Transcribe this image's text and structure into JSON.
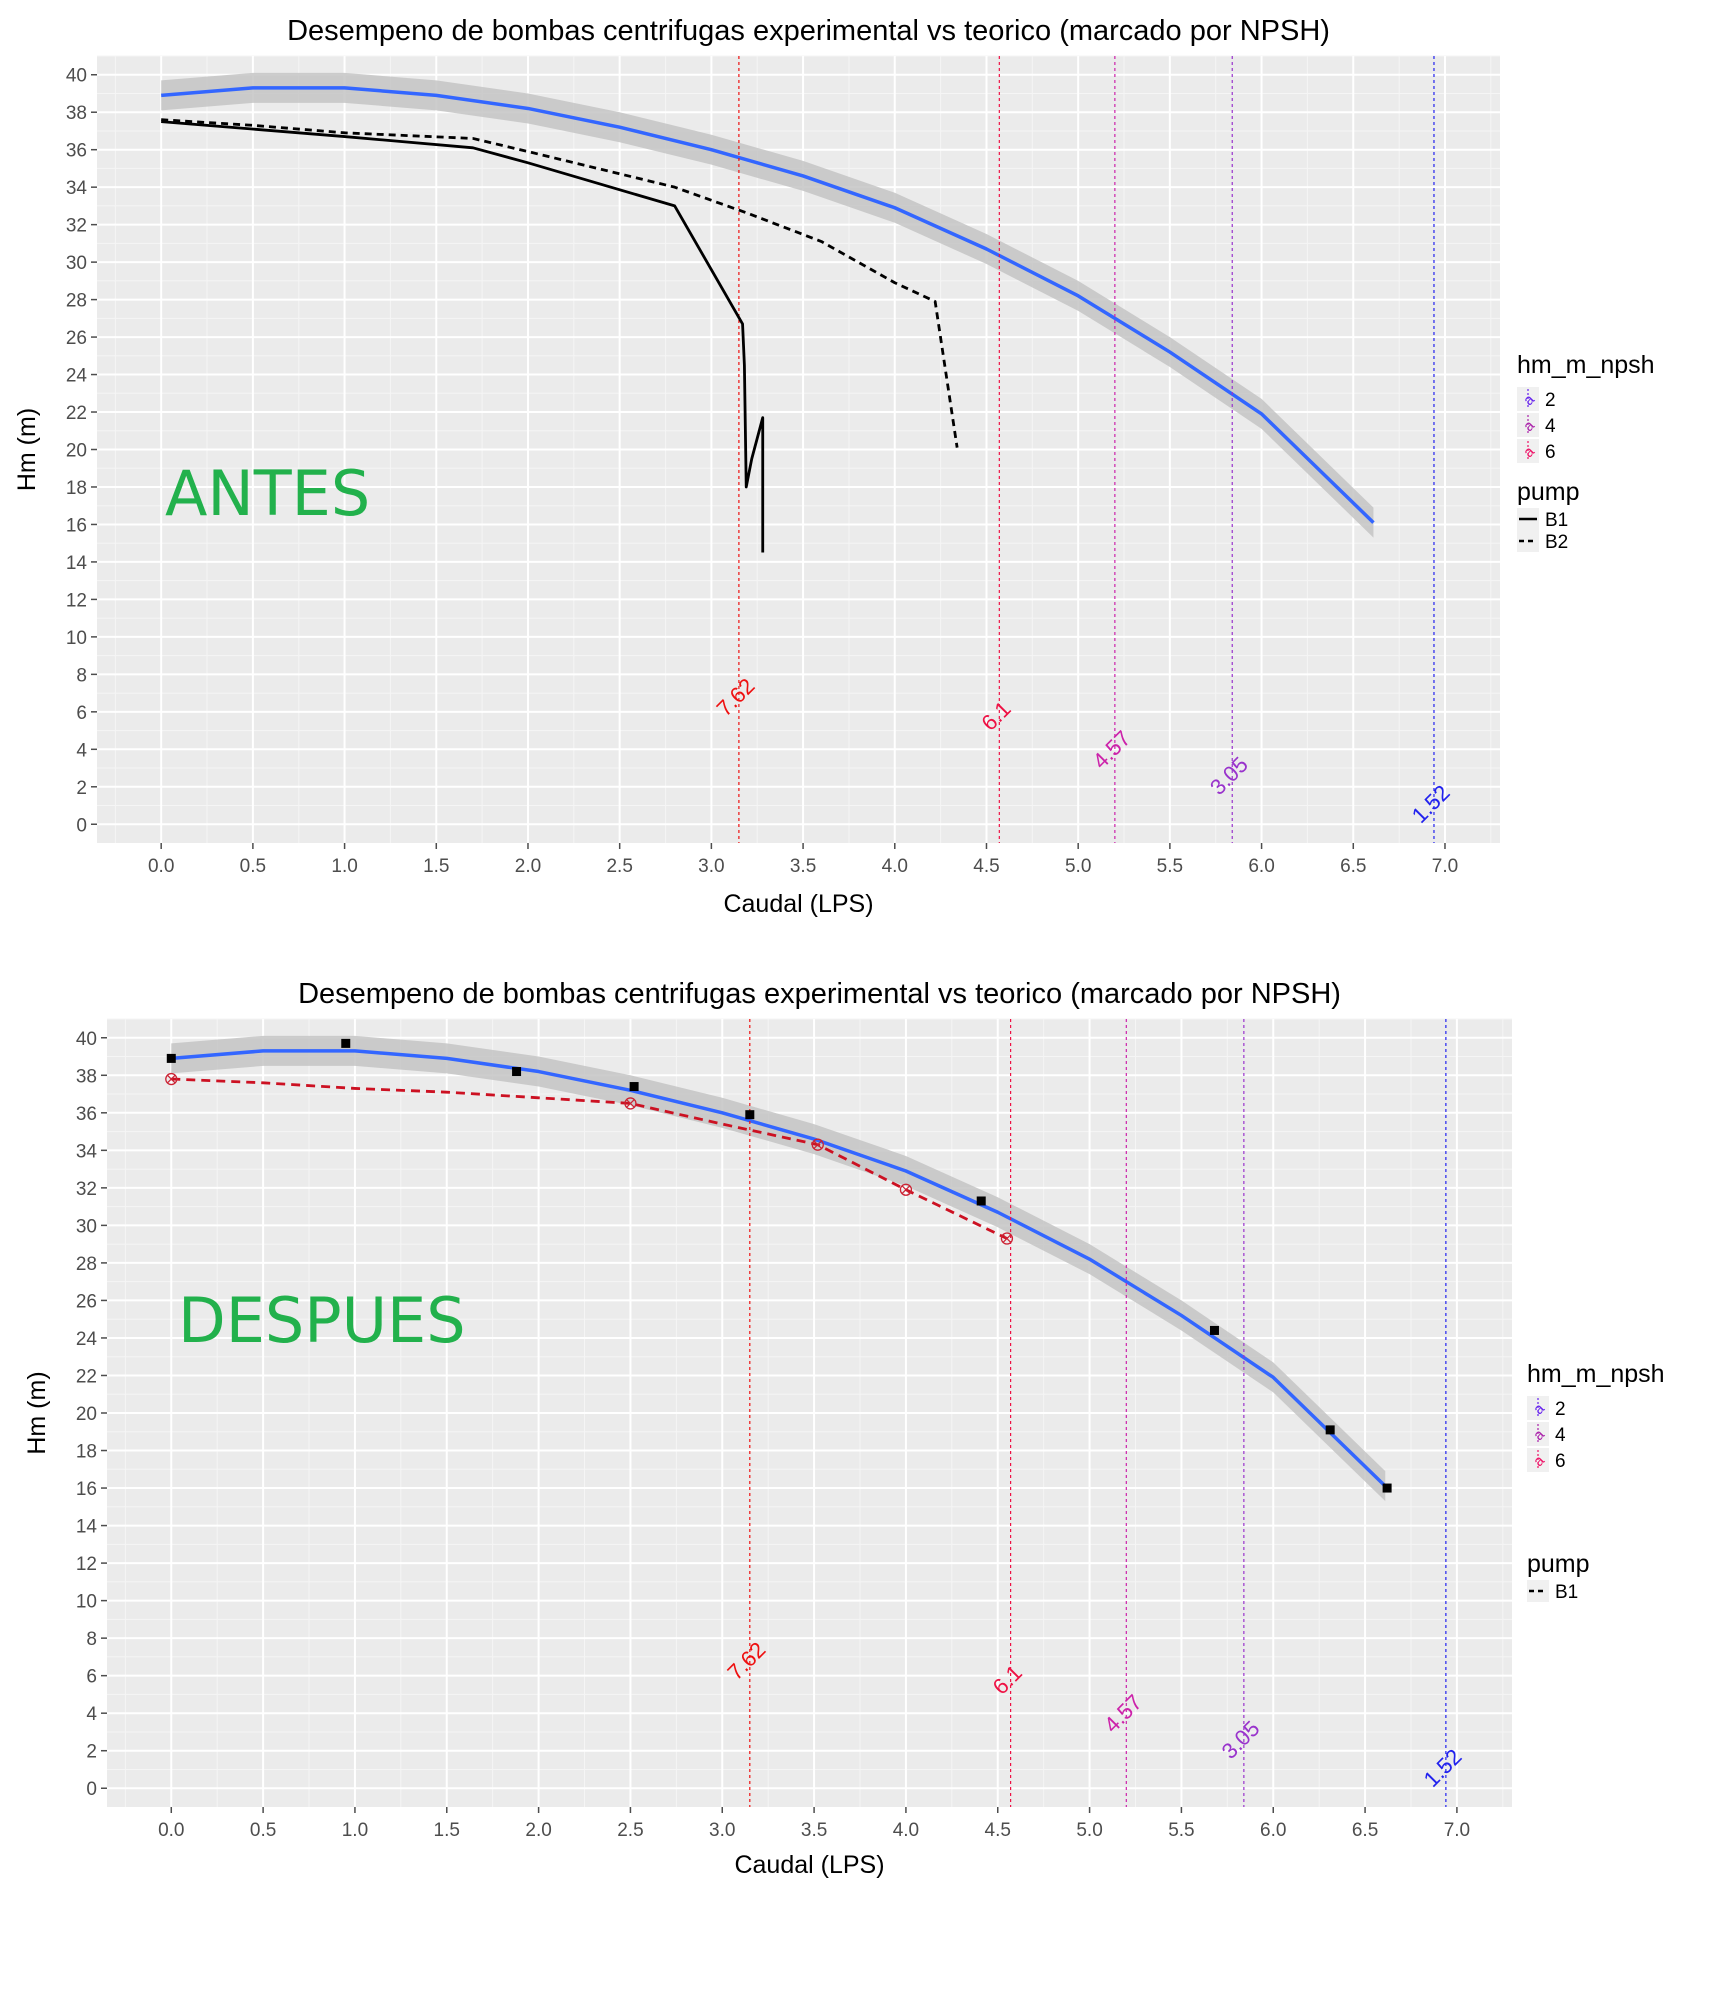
{
  "chart_data": [
    {
      "type": "line",
      "title": "Desempeno de bombas centrifugas experimental vs teorico (marcado por NPSH)",
      "xlabel": "Caudal (LPS)",
      "ylabel": "Hm (m)",
      "annotation": "ANTES",
      "xlim": [
        -0.35,
        7.3
      ],
      "ylim": [
        -1,
        41
      ],
      "x_ticks": [
        "0.0",
        "0.5",
        "1.0",
        "1.5",
        "2.0",
        "2.5",
        "3.0",
        "3.5",
        "4.0",
        "4.5",
        "5.0",
        "5.5",
        "6.0",
        "6.5",
        "7.0"
      ],
      "y_ticks": [
        "0",
        "2",
        "4",
        "6",
        "8",
        "10",
        "12",
        "14",
        "16",
        "18",
        "20",
        "22",
        "24",
        "26",
        "28",
        "30",
        "32",
        "34",
        "36",
        "38",
        "40"
      ],
      "grid": true,
      "smooth_fit": {
        "color": "#3366ff",
        "x": [
          0,
          0.5,
          1.0,
          1.5,
          2.0,
          2.5,
          3.0,
          3.5,
          4.0,
          4.5,
          5.0,
          5.5,
          6.0,
          6.61
        ],
        "y": [
          38.9,
          39.3,
          39.3,
          38.9,
          38.2,
          37.2,
          36.0,
          34.6,
          32.9,
          30.7,
          28.2,
          25.2,
          21.9,
          16.1
        ],
        "ci": 0.8
      },
      "series": [
        {
          "name": "B1",
          "linetype": "solid",
          "x": [
            0,
            1.0,
            1.7,
            2.0,
            2.8,
            3.17,
            3.18,
            3.19,
            3.22,
            3.28,
            3.28
          ],
          "y": [
            37.5,
            36.7,
            36.1,
            35.3,
            33.0,
            26.7,
            24.5,
            18.0,
            19.5,
            21.7,
            14.5
          ]
        },
        {
          "name": "B2",
          "linetype": "dashed",
          "x": [
            0,
            0.5,
            1.0,
            1.7,
            2.0,
            2.8,
            3.2,
            3.6,
            4.0,
            4.22,
            4.34
          ],
          "y": [
            37.6,
            37.3,
            36.9,
            36.6,
            35.9,
            34.0,
            32.6,
            31.1,
            28.9,
            27.9,
            20.1
          ]
        }
      ],
      "npsh_lines": [
        {
          "x": 3.15,
          "label": "7.62",
          "color": "#ee1111"
        },
        {
          "x": 4.57,
          "label": "6.1",
          "color": "#ee1144"
        },
        {
          "x": 5.2,
          "label": "4.57",
          "color": "#cc22aa"
        },
        {
          "x": 5.84,
          "label": "3.05",
          "color": "#9933cc"
        },
        {
          "x": 6.94,
          "label": "1.52",
          "color": "#2222ee"
        }
      ],
      "legend": {
        "placement": "right",
        "npsh": {
          "title": "hm_m_npsh",
          "items": [
            "2",
            "4",
            "6"
          ],
          "colors": [
            "#6622ee",
            "#aa22aa",
            "#ee1166"
          ]
        },
        "pump": {
          "title": "pump",
          "items": [
            "B1",
            "B2"
          ]
        }
      }
    },
    {
      "type": "line",
      "title": "Desempeno de bombas centrifugas experimental vs teorico (marcado por NPSH)",
      "xlabel": "Caudal (LPS)",
      "ylabel": "Hm (m)",
      "annotation": "DESPUES",
      "xlim": [
        -0.35,
        7.3
      ],
      "ylim": [
        -1,
        41
      ],
      "x_ticks": [
        "0.0",
        "0.5",
        "1.0",
        "1.5",
        "2.0",
        "2.5",
        "3.0",
        "3.5",
        "4.0",
        "4.5",
        "5.0",
        "5.5",
        "6.0",
        "6.5",
        "7.0"
      ],
      "y_ticks": [
        "0",
        "2",
        "4",
        "6",
        "8",
        "10",
        "12",
        "14",
        "16",
        "18",
        "20",
        "22",
        "24",
        "26",
        "28",
        "30",
        "32",
        "34",
        "36",
        "38",
        "40"
      ],
      "grid": true,
      "smooth_fit": {
        "color": "#3366ff",
        "x": [
          0,
          0.5,
          1.0,
          1.5,
          2.0,
          2.5,
          3.0,
          3.5,
          4.0,
          4.5,
          5.0,
          5.5,
          6.0,
          6.61
        ],
        "y": [
          38.9,
          39.3,
          39.3,
          38.9,
          38.2,
          37.2,
          36.0,
          34.6,
          32.9,
          30.7,
          28.2,
          25.2,
          21.9,
          16.1
        ],
        "ci": 0.8
      },
      "teorico_points": {
        "x": [
          0,
          0.95,
          1.88,
          2.52,
          3.15,
          4.41,
          5.68,
          6.31,
          6.62
        ],
        "y": [
          38.9,
          39.7,
          38.2,
          37.4,
          35.9,
          31.3,
          24.4,
          19.1,
          16.0
        ]
      },
      "series": [
        {
          "name": "B1",
          "linetype": "dashed",
          "color": "#cc1122",
          "x": [
            0,
            0.5,
            1.0,
            1.5,
            2.0,
            2.5,
            3.0,
            3.52,
            4.0,
            4.55
          ],
          "y": [
            37.8,
            37.6,
            37.3,
            37.1,
            36.8,
            36.5,
            35.4,
            34.3,
            31.9,
            29.3
          ]
        }
      ],
      "b1_points": {
        "x": [
          0,
          2.5,
          3.52,
          4.0,
          4.55
        ],
        "y": [
          37.8,
          36.5,
          34.3,
          31.9,
          29.3
        ]
      },
      "npsh_lines": [
        {
          "x": 3.15,
          "label": "7.62",
          "color": "#ee1111"
        },
        {
          "x": 4.57,
          "label": "6.1",
          "color": "#ee1144"
        },
        {
          "x": 5.2,
          "label": "4.57",
          "color": "#cc22aa"
        },
        {
          "x": 5.84,
          "label": "3.05",
          "color": "#9933cc"
        },
        {
          "x": 6.94,
          "label": "1.52",
          "color": "#2222ee"
        }
      ],
      "legend": {
        "placement": "right",
        "npsh": {
          "title": "hm_m_npsh",
          "items": [
            "2",
            "4",
            "6"
          ],
          "colors": [
            "#6622ee",
            "#aa22aa",
            "#ee1166"
          ]
        },
        "pump": {
          "title": "pump",
          "items": [
            "B1"
          ]
        }
      }
    }
  ]
}
